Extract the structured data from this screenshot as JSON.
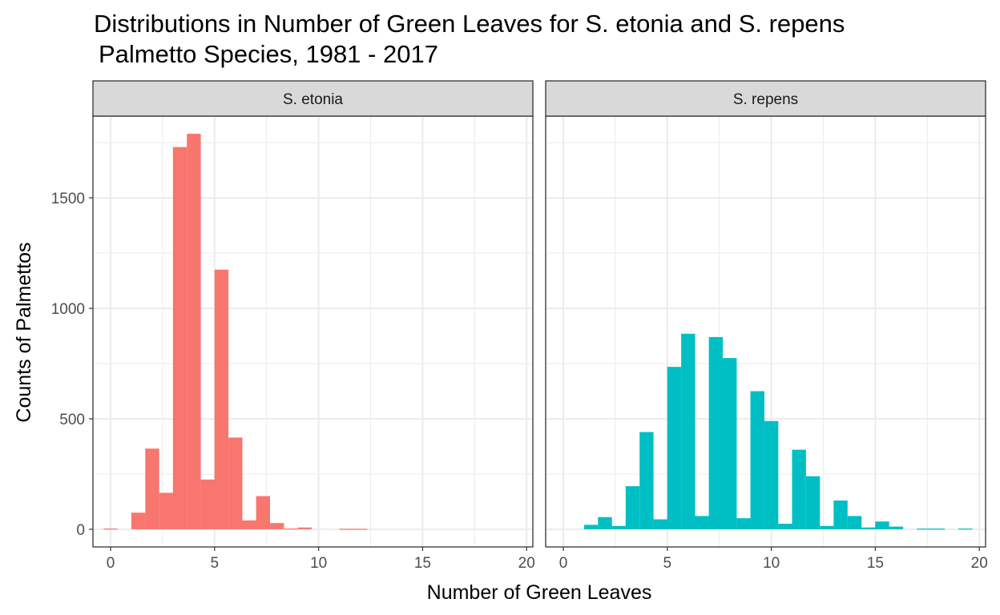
{
  "chart_data": {
    "type": "bar",
    "title": "Distributions in Number of Green Leaves for S. etonia and S. repens",
    "subtitle": "Palmetto Species, 1981 - 2017",
    "xlabel": "Number of Green Leaves",
    "ylabel": "Counts of Palmettos",
    "xlim": [
      -0.85,
      20.3
    ],
    "ylim": [
      -80,
      1870
    ],
    "x_ticks": [
      0,
      5,
      10,
      15,
      20
    ],
    "y_ticks": [
      0,
      500,
      1000,
      1500
    ],
    "bin_width": 0.67,
    "grid": true,
    "legend": "none",
    "panels": [
      {
        "label": "S. etonia",
        "color": "#F8766D",
        "bins": [
          {
            "x": 0.0,
            "count": 3
          },
          {
            "x": 1.33,
            "count": 75
          },
          {
            "x": 2.0,
            "count": 365
          },
          {
            "x": 2.67,
            "count": 165
          },
          {
            "x": 3.33,
            "count": 1730
          },
          {
            "x": 4.0,
            "count": 1790
          },
          {
            "x": 4.67,
            "count": 225
          },
          {
            "x": 5.33,
            "count": 1175
          },
          {
            "x": 6.0,
            "count": 415
          },
          {
            "x": 6.67,
            "count": 40
          },
          {
            "x": 7.33,
            "count": 150
          },
          {
            "x": 8.0,
            "count": 28
          },
          {
            "x": 8.67,
            "count": 3
          },
          {
            "x": 9.33,
            "count": 8
          },
          {
            "x": 11.33,
            "count": 2
          },
          {
            "x": 12.0,
            "count": 2
          }
        ]
      },
      {
        "label": "S. repens",
        "color": "#00BFC4",
        "bins": [
          {
            "x": 1.33,
            "count": 20
          },
          {
            "x": 2.0,
            "count": 55
          },
          {
            "x": 2.67,
            "count": 15
          },
          {
            "x": 3.33,
            "count": 195
          },
          {
            "x": 4.0,
            "count": 440
          },
          {
            "x": 4.67,
            "count": 45
          },
          {
            "x": 5.33,
            "count": 735
          },
          {
            "x": 6.0,
            "count": 885
          },
          {
            "x": 6.67,
            "count": 60
          },
          {
            "x": 7.33,
            "count": 870
          },
          {
            "x": 8.0,
            "count": 775
          },
          {
            "x": 8.67,
            "count": 50
          },
          {
            "x": 9.33,
            "count": 625
          },
          {
            "x": 10.0,
            "count": 490
          },
          {
            "x": 10.67,
            "count": 25
          },
          {
            "x": 11.33,
            "count": 360
          },
          {
            "x": 12.0,
            "count": 240
          },
          {
            "x": 12.67,
            "count": 15
          },
          {
            "x": 13.33,
            "count": 130
          },
          {
            "x": 14.0,
            "count": 60
          },
          {
            "x": 14.67,
            "count": 8
          },
          {
            "x": 15.33,
            "count": 35
          },
          {
            "x": 16.0,
            "count": 12
          },
          {
            "x": 17.33,
            "count": 3
          },
          {
            "x": 18.0,
            "count": 3
          },
          {
            "x": 19.33,
            "count": 3
          }
        ]
      }
    ]
  }
}
